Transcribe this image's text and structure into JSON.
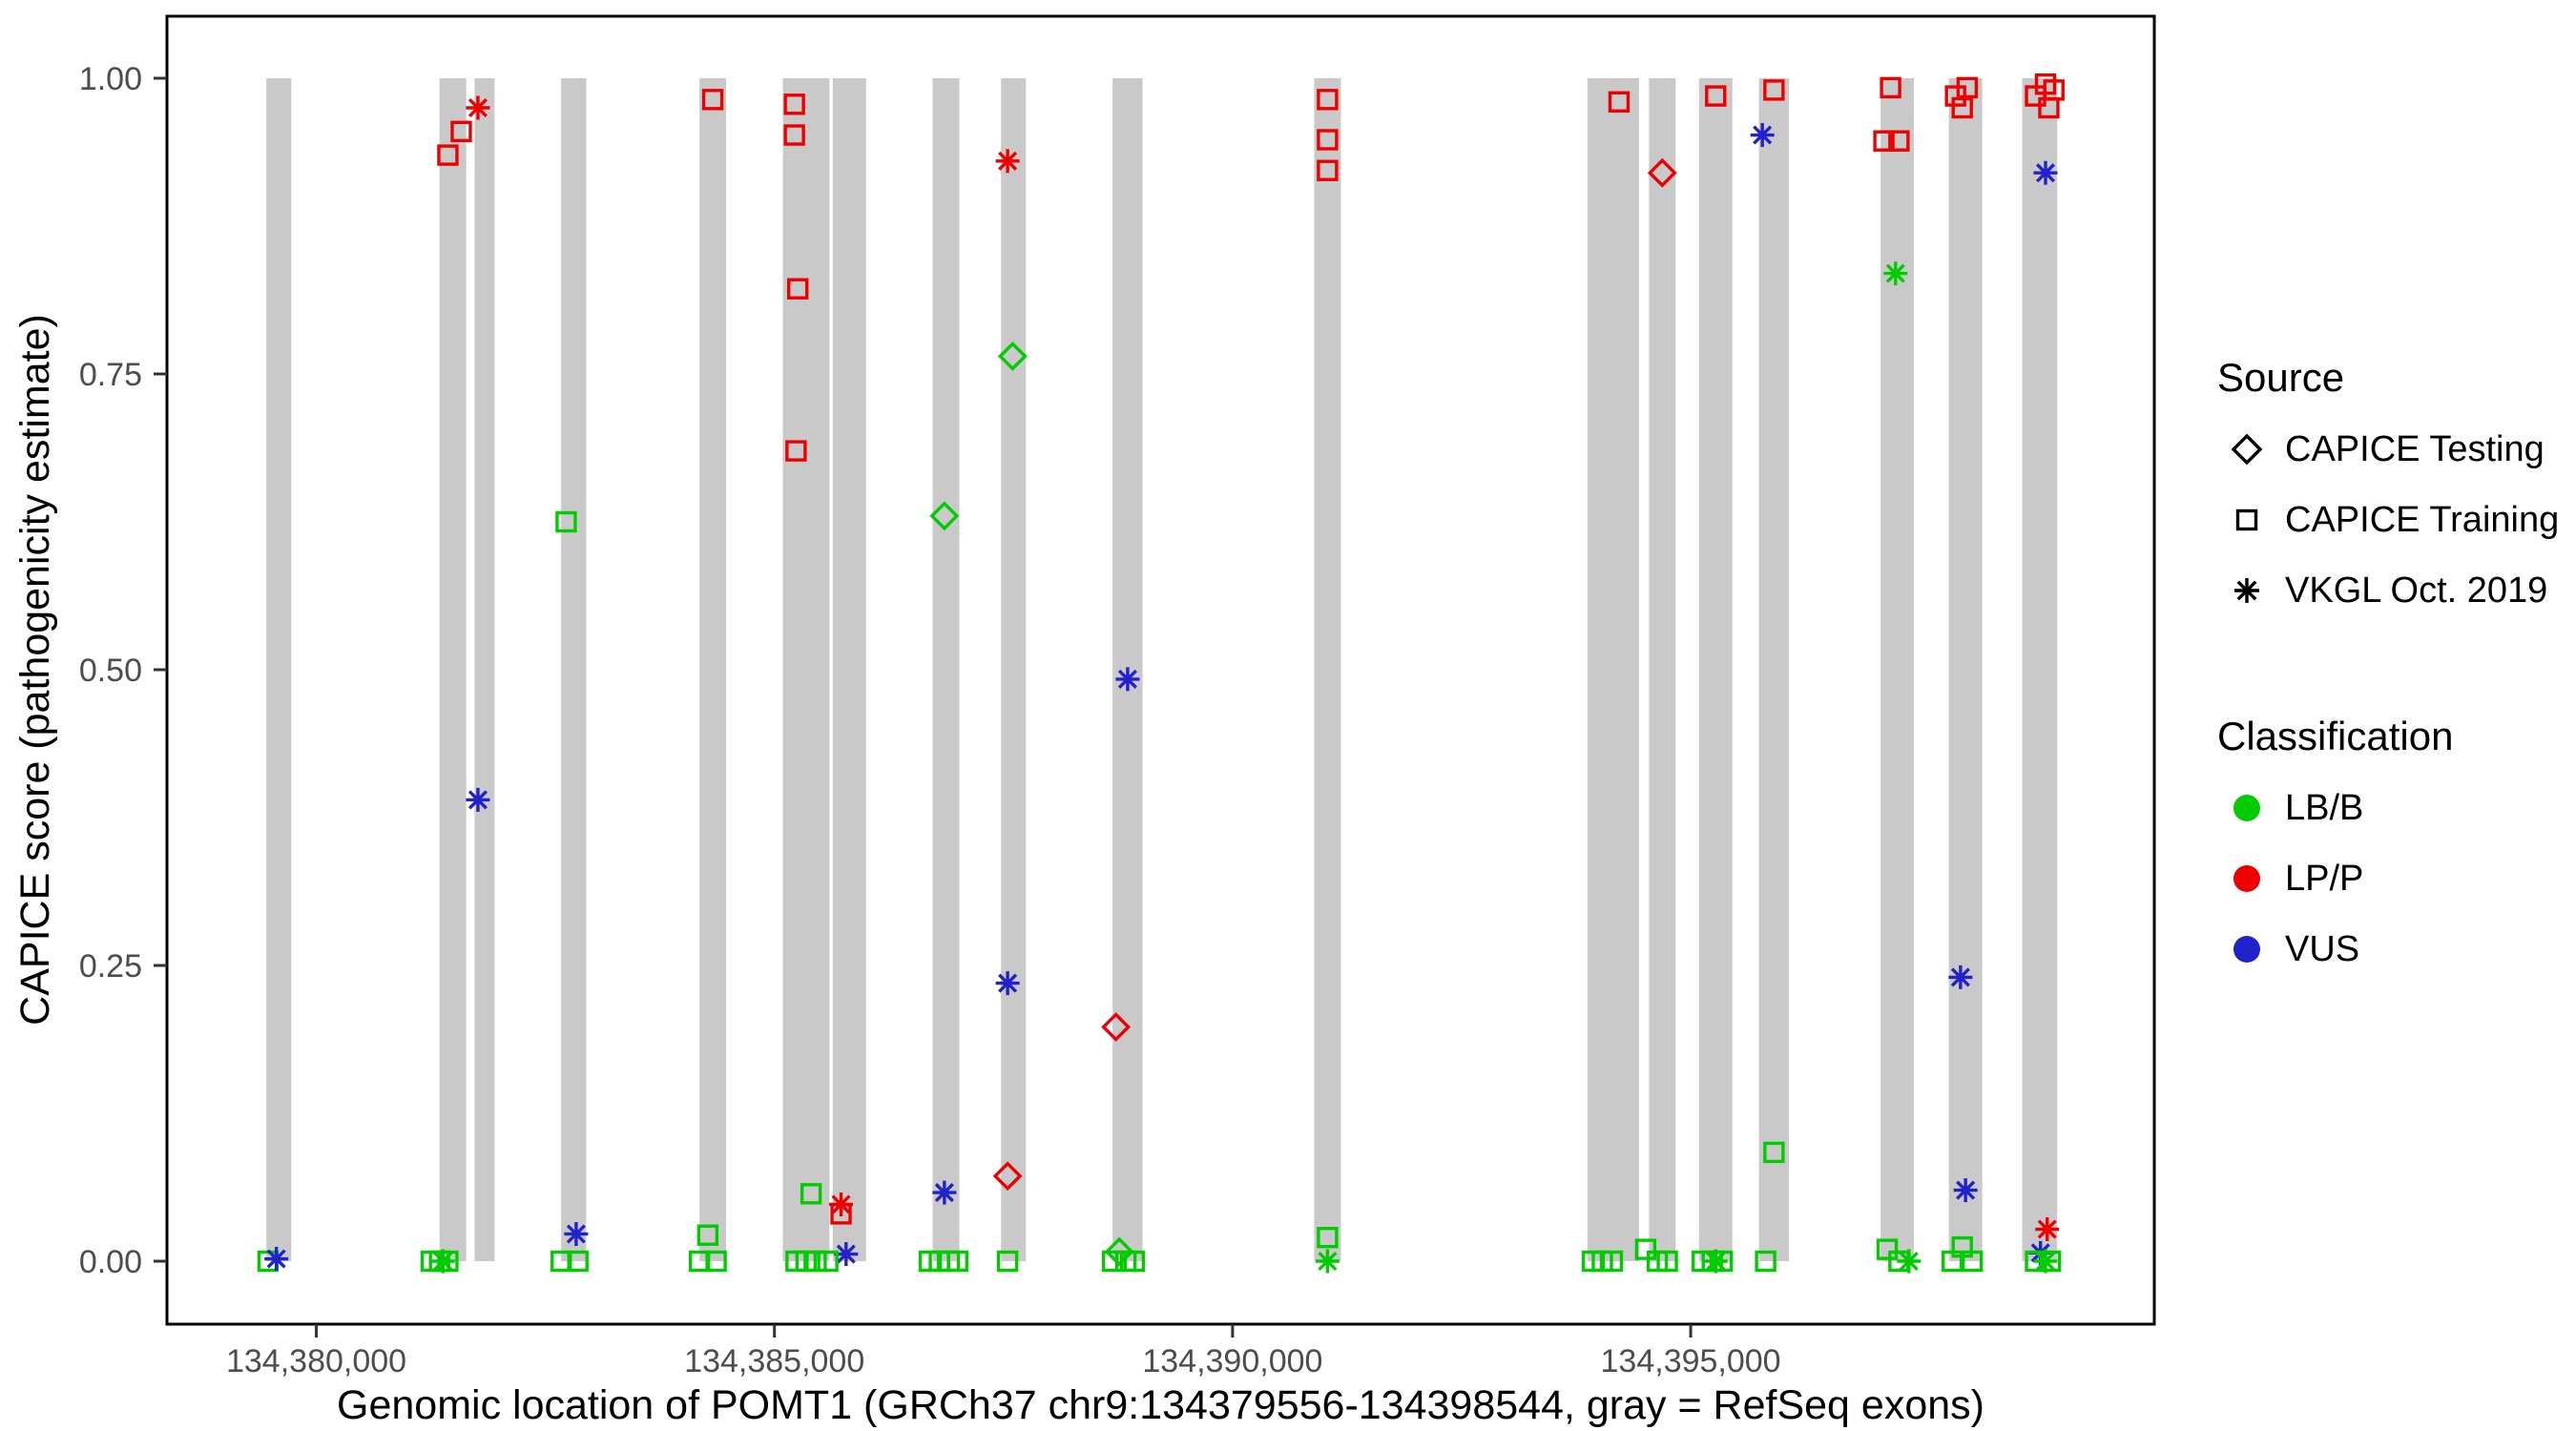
{
  "page": {
    "background": "#FFFFFF"
  },
  "chart_data": {
    "type": "scatter",
    "title": "",
    "xlabel": "Genomic location of POMT1 (GRCh37 chr9:134379556-134398544, gray = RefSeq exons)",
    "ylabel": "CAPICE score (pathogenicity estimate)",
    "xlim": [
      134378370,
      134400060
    ],
    "ylim": [
      0,
      1
    ],
    "x_ticks": [
      134380000,
      134385000,
      134390000,
      134395000
    ],
    "x_tick_labels": [
      "134,380,000",
      "134,385,000",
      "134,390,000",
      "134,395,000"
    ],
    "y_ticks": [
      0,
      0.25,
      0.5,
      0.75,
      1
    ],
    "y_tick_labels": [
      "0.00",
      "0.25",
      "0.50",
      "0.75",
      "1.00"
    ],
    "grid": false,
    "legend_position": "right",
    "panel_border_color": "#000000",
    "tick_color": "#333333",
    "tick_label_color": "#4D4D4D",
    "exon_color": "#C9C9C9",
    "class_colors": {
      "LB/B": "#00CC00",
      "LP/P": "#EE0000",
      "VUS": "#2222CC"
    },
    "source_shapes": {
      "test": "diamond",
      "train": "square",
      "vkgl": "asterisk"
    },
    "exons": [
      [
        134379455,
        134379727
      ],
      [
        134381345,
        134381636
      ],
      [
        134381727,
        134381945
      ],
      [
        134382672,
        134382945
      ],
      [
        134384182,
        134384473
      ],
      [
        134385091,
        134385600
      ],
      [
        134385636,
        134386000
      ],
      [
        134386727,
        134387018
      ],
      [
        134387473,
        134387745
      ],
      [
        134388691,
        134389018
      ],
      [
        134390891,
        134391182
      ],
      [
        134393873,
        134394436
      ],
      [
        134394545,
        134394836
      ],
      [
        134395091,
        134395455
      ],
      [
        134395745,
        134396073
      ],
      [
        134397073,
        134397436
      ],
      [
        134397818,
        134398182
      ],
      [
        134398618,
        134399000
      ]
    ],
    "point_format": [
      "x",
      "y",
      "source",
      "classification"
    ],
    "points": [
      [
        134379473,
        0.0,
        "train",
        "LB/B"
      ],
      [
        134379564,
        0.002,
        "vkgl",
        "VUS"
      ],
      [
        134381436,
        0.935,
        "train",
        "LP/P"
      ],
      [
        134381582,
        0.955,
        "train",
        "LP/P"
      ],
      [
        134381764,
        0.975,
        "vkgl",
        "LP/P"
      ],
      [
        134381764,
        0.39,
        "vkgl",
        "VUS"
      ],
      [
        134381255,
        0.0,
        "train",
        "LB/B"
      ],
      [
        134381345,
        0.0,
        "train",
        "LB/B"
      ],
      [
        134381436,
        0.0,
        "train",
        "LB/B"
      ],
      [
        134381382,
        0.0,
        "vkgl",
        "LB/B"
      ],
      [
        134382727,
        0.625,
        "train",
        "LB/B"
      ],
      [
        134382836,
        0.023,
        "vkgl",
        "VUS"
      ],
      [
        134382673,
        0.0,
        "train",
        "LB/B"
      ],
      [
        134382855,
        0.0,
        "train",
        "LB/B"
      ],
      [
        134384327,
        0.982,
        "train",
        "LP/P"
      ],
      [
        134384273,
        0.022,
        "train",
        "LB/B"
      ],
      [
        134384182,
        0.0,
        "train",
        "LB/B"
      ],
      [
        134384364,
        0.0,
        "train",
        "LB/B"
      ],
      [
        134385218,
        0.978,
        "train",
        "LP/P"
      ],
      [
        134385218,
        0.952,
        "train",
        "LP/P"
      ],
      [
        134385255,
        0.822,
        "train",
        "LP/P"
      ],
      [
        134385236,
        0.685,
        "train",
        "LP/P"
      ],
      [
        134385400,
        0.057,
        "train",
        "LB/B"
      ],
      [
        134385727,
        0.04,
        "train",
        "LP/P"
      ],
      [
        134385727,
        0.048,
        "vkgl",
        "LP/P"
      ],
      [
        134385782,
        0.006,
        "vkgl",
        "VUS"
      ],
      [
        134385236,
        0.0,
        "train",
        "LB/B"
      ],
      [
        134385345,
        0.0,
        "train",
        "LB/B"
      ],
      [
        134385455,
        0.0,
        "train",
        "LB/B"
      ],
      [
        134385582,
        0.0,
        "train",
        "LB/B"
      ],
      [
        134386855,
        0.63,
        "test",
        "LB/B"
      ],
      [
        134386855,
        0.058,
        "vkgl",
        "VUS"
      ],
      [
        134386691,
        0.0,
        "train",
        "LB/B"
      ],
      [
        134386800,
        0.0,
        "train",
        "LB/B"
      ],
      [
        134386909,
        0.0,
        "train",
        "LB/B"
      ],
      [
        134387000,
        0.0,
        "train",
        "LB/B"
      ],
      [
        134387545,
        0.93,
        "vkgl",
        "LP/P"
      ],
      [
        134387600,
        0.765,
        "test",
        "LB/B"
      ],
      [
        134387545,
        0.235,
        "vkgl",
        "VUS"
      ],
      [
        134387545,
        0.072,
        "test",
        "LP/P"
      ],
      [
        134387545,
        0.0,
        "train",
        "LB/B"
      ],
      [
        134388855,
        0.492,
        "vkgl",
        "VUS"
      ],
      [
        134388727,
        0.198,
        "test",
        "LP/P"
      ],
      [
        134388764,
        0.008,
        "test",
        "LB/B"
      ],
      [
        134388691,
        0.0,
        "train",
        "LB/B"
      ],
      [
        134388836,
        0.0,
        "train",
        "LB/B"
      ],
      [
        134388927,
        0.0,
        "train",
        "LB/B"
      ],
      [
        134391036,
        0.982,
        "train",
        "LP/P"
      ],
      [
        134391036,
        0.948,
        "train",
        "LP/P"
      ],
      [
        134391036,
        0.922,
        "train",
        "LP/P"
      ],
      [
        134391036,
        0.02,
        "train",
        "LB/B"
      ],
      [
        134391036,
        0.0,
        "vkgl",
        "LB/B"
      ],
      [
        134394218,
        0.98,
        "train",
        "LP/P"
      ],
      [
        134393927,
        0.0,
        "train",
        "LB/B"
      ],
      [
        134394036,
        0.0,
        "train",
        "LB/B"
      ],
      [
        134394145,
        0.0,
        "train",
        "LB/B"
      ],
      [
        134394690,
        0.92,
        "test",
        "LP/P"
      ],
      [
        134394509,
        0.01,
        "train",
        "LB/B"
      ],
      [
        134394636,
        0.0,
        "train",
        "LB/B"
      ],
      [
        134394745,
        0.0,
        "train",
        "LB/B"
      ],
      [
        134395273,
        0.985,
        "train",
        "LP/P"
      ],
      [
        134395127,
        0.0,
        "train",
        "LB/B"
      ],
      [
        134395236,
        0.0,
        "train",
        "LB/B"
      ],
      [
        134395345,
        0.0,
        "train",
        "LB/B"
      ],
      [
        134395273,
        0.0,
        "vkgl",
        "LB/B"
      ],
      [
        134395909,
        0.99,
        "train",
        "LP/P"
      ],
      [
        134395782,
        0.952,
        "vkgl",
        "VUS"
      ],
      [
        134395909,
        0.092,
        "train",
        "LB/B"
      ],
      [
        134395818,
        0.0,
        "train",
        "LB/B"
      ],
      [
        134397182,
        0.992,
        "train",
        "LP/P"
      ],
      [
        134397109,
        0.947,
        "train",
        "LP/P"
      ],
      [
        134397273,
        0.947,
        "train",
        "LP/P"
      ],
      [
        134397236,
        0.835,
        "vkgl",
        "LB/B"
      ],
      [
        134397145,
        0.01,
        "train",
        "LB/B"
      ],
      [
        134397273,
        0.0,
        "train",
        "LB/B"
      ],
      [
        134397382,
        0.0,
        "vkgl",
        "LB/B"
      ],
      [
        134397891,
        0.985,
        "train",
        "LP/P"
      ],
      [
        134398018,
        0.992,
        "train",
        "LP/P"
      ],
      [
        134397964,
        0.975,
        "train",
        "LP/P"
      ],
      [
        134397945,
        0.24,
        "vkgl",
        "VUS"
      ],
      [
        134398000,
        0.06,
        "vkgl",
        "VUS"
      ],
      [
        134397964,
        0.012,
        "train",
        "LB/B"
      ],
      [
        134397855,
        0.0,
        "train",
        "LB/B"
      ],
      [
        134398073,
        0.0,
        "train",
        "LB/B"
      ],
      [
        134398764,
        0.985,
        "train",
        "LP/P"
      ],
      [
        134398873,
        0.995,
        "train",
        "LP/P"
      ],
      [
        134398964,
        0.99,
        "train",
        "LP/P"
      ],
      [
        134398909,
        0.975,
        "train",
        "LP/P"
      ],
      [
        134398873,
        0.92,
        "vkgl",
        "VUS"
      ],
      [
        134398891,
        0.027,
        "vkgl",
        "LP/P"
      ],
      [
        134398818,
        0.007,
        "vkgl",
        "VUS"
      ],
      [
        134398764,
        0.0,
        "train",
        "LB/B"
      ],
      [
        134398927,
        0.0,
        "train",
        "LB/B"
      ],
      [
        134398873,
        0.0,
        "vkgl",
        "LB/B"
      ]
    ]
  },
  "legend": {
    "source": {
      "title": "Source",
      "items": [
        {
          "label": "CAPICE Testing",
          "shape": "diamond"
        },
        {
          "label": "CAPICE Training",
          "shape": "square"
        },
        {
          "label": "VKGL Oct. 2019",
          "shape": "asterisk"
        }
      ]
    },
    "classification": {
      "title": "Classification",
      "items": [
        {
          "label": "LB/B",
          "color": "#00CC00"
        },
        {
          "label": "LP/P",
          "color": "#EE0000"
        },
        {
          "label": "VUS",
          "color": "#2222CC"
        }
      ]
    }
  }
}
